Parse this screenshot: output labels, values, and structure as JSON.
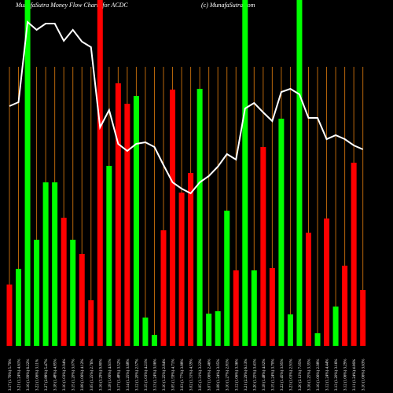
{
  "chart_data": {
    "type": "bar",
    "title": "MunafaSutra Money Flow Charts for ACDC",
    "credit": "(c) MunafaSutra.com",
    "categories": [
      "3.17 (1.76%) 5.79%",
      "3.21 (1.24%) 4.61%",
      "3.16 (1.99%) 6.22%",
      "3.22 (1.06%) 3.11%",
      "3.27 (2.88%) 5.47%",
      "3.18 (1.48%) 4.85%",
      "3.10 (1.03%) 2.94%",
      "3.15 (1.20%) 3.07%",
      "3.08 (1.06%) 4.12%",
      "3.05 (1.25%) 2.76%",
      "3.16 (3.29%) 9.80%",
      "3.18 (1.06%) 4.61%",
      "3.17 (1.48%) 3.52%",
      "3.14 (1.25%) 3.68%",
      "3.12 (1.20%) 2.57%",
      "3.15 (1.03%) 4.21%",
      "3.13 (1.24%) 3.06%",
      "3.10 (1.25%) 2.84%",
      "3.05 (1.59%) 4.71%",
      "3.03 (1.77%) 3.88%",
      "3.02 (1.31%) 4.59%",
      "3.05 (1.31%) 3.22%",
      "3.07 (1.06%) 2.46%",
      "3.08 (1.24%) 3.05%",
      "3.10 (1.27%) 2.81%",
      "3.12 (1.06%) 3.36%",
      "3.21 (2.29%) 6.13%",
      "3.20 (1.25%) 3.41%",
      "3.18 (1.48%) 4.02%",
      "3.15 (1.24%) 3.70%",
      "3.22 (1.45%) 3.95%",
      "3.23 (1.03%) 2.91%",
      "3.20 (2.12%) 7.05%",
      "3.16 (1.25%) 3.35%",
      "3.16 (1.06%) 2.98%",
      "3.12 (1.24%) 4.44%",
      "3.13 (1.20%) 3.16%",
      "3.12 (1.06%) 3.29%",
      "3.11 (1.24%) 4.06%",
      "3.10 (1.06%) 3.63%"
    ],
    "values": [
      78,
      98,
      440,
      135,
      208,
      208,
      163,
      135,
      117,
      58,
      440,
      229,
      334,
      308,
      318,
      36,
      14,
      147,
      326,
      195,
      220,
      327,
      41,
      44,
      172,
      96,
      440,
      96,
      253,
      99,
      289,
      40,
      440,
      144,
      16,
      162,
      50,
      102,
      233,
      71
    ],
    "colors": [
      "#ff0000",
      "#00ff00",
      "#00ff00",
      "#00ff00",
      "#00ff00",
      "#00ff00",
      "#ff0000",
      "#00ff00",
      "#ff0000",
      "#ff0000",
      "#ff0000",
      "#00ff00",
      "#ff0000",
      "#ff0000",
      "#00ff00",
      "#00ff00",
      "#00ff00",
      "#ff0000",
      "#ff0000",
      "#ff0000",
      "#ff0000",
      "#00ff00",
      "#00ff00",
      "#00ff00",
      "#00ff00",
      "#ff0000",
      "#00ff00",
      "#00ff00",
      "#ff0000",
      "#ff0000",
      "#00ff00",
      "#00ff00",
      "#00ff00",
      "#ff0000",
      "#00ff00",
      "#ff0000",
      "#00ff00",
      "#ff0000",
      "#ff0000",
      "#ff0000"
    ],
    "line_values": [
      305,
      310,
      412,
      402,
      410,
      410,
      388,
      402,
      387,
      380,
      278,
      300,
      257,
      248,
      257,
      259,
      253,
      230,
      208,
      200,
      194,
      208,
      216,
      228,
      244,
      237,
      302,
      309,
      297,
      286,
      323,
      327,
      320,
      290,
      290,
      263,
      268,
      263,
      255,
      250
    ],
    "line_color": "#ffffff",
    "grid_color": "#b8660b",
    "ylim": [
      0,
      440
    ]
  }
}
